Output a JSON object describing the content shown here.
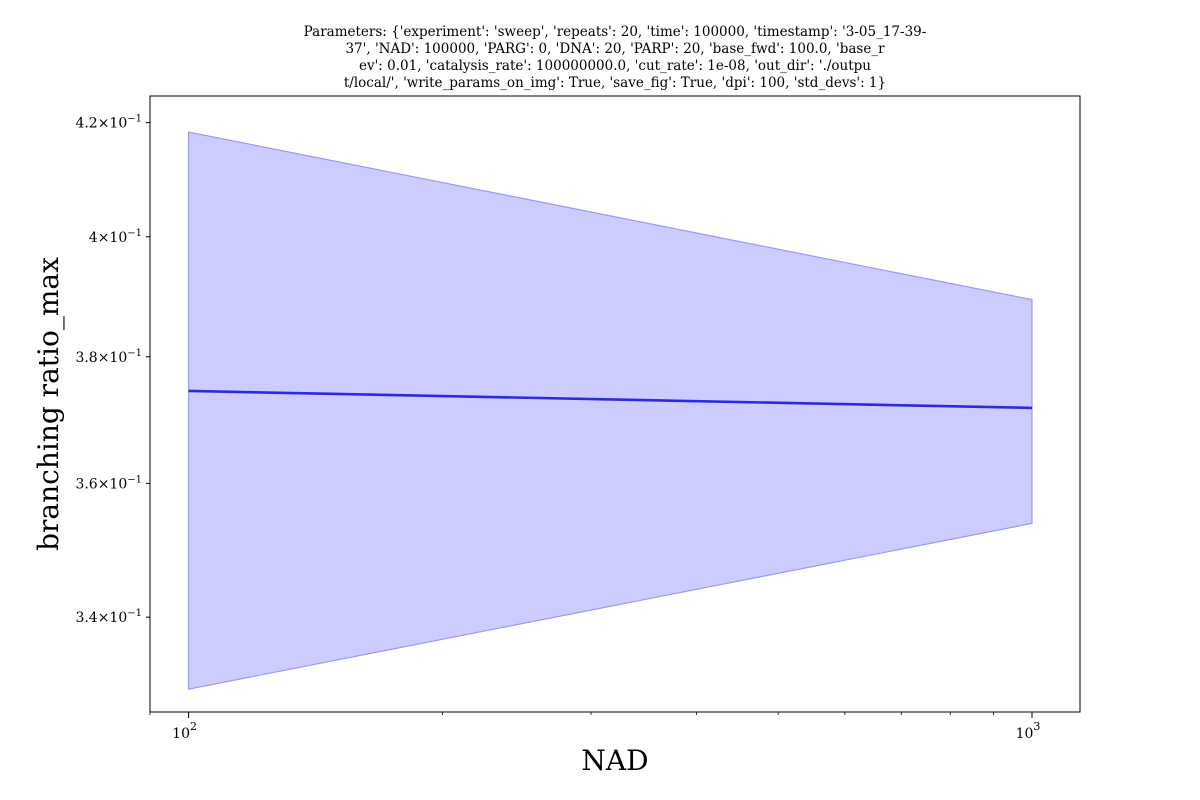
{
  "chart_data": {
    "type": "line",
    "title_lines": [
      "Parameters: {'experiment': 'sweep', 'repeats': 20, 'time': 100000, 'timestamp': '3-05_17-39-",
      "37', 'NAD': 100000, 'PARG': 0, 'DNA': 20, 'PARP': 20, 'base_fwd': 100.0, 'base_r",
      "ev': 0.01, 'catalysis_rate': 100000000.0, 'cut_rate': 1e-08, 'out_dir': './outpu",
      "t/local/', 'write_params_on_img': True, 'save_fig': True, 'dpi': 100, 'std_devs': 1}"
    ],
    "xlabel": "NAD",
    "ylabel": "branching ratio_max",
    "xscale": "log",
    "yscale": "log",
    "xlim": [
      90,
      1140
    ],
    "ylim": [
      0.3265,
      0.4248
    ],
    "x_ticks": [
      {
        "value": 100,
        "base": "10",
        "exp": "2"
      },
      {
        "value": 1000,
        "base": "10",
        "exp": "3"
      }
    ],
    "y_ticks": [
      {
        "value": 0.34,
        "mantissa": "3.4",
        "base": "10",
        "exp": "−1"
      },
      {
        "value": 0.36,
        "mantissa": "3.6",
        "base": "10",
        "exp": "−1"
      },
      {
        "value": 0.38,
        "mantissa": "3.8",
        "base": "10",
        "exp": "−1"
      },
      {
        "value": 0.4,
        "mantissa": "4",
        "base": "10",
        "exp": "−1"
      },
      {
        "value": 0.42,
        "mantissa": "4.2",
        "base": "10",
        "exp": "−1"
      }
    ],
    "series": [
      {
        "x": [
          100,
          1000
        ],
        "y": [
          0.3745,
          0.3718
        ],
        "upper": [
          0.4183,
          0.3894
        ],
        "lower": [
          0.3297,
          0.3539
        ]
      }
    ],
    "line_color": "#2a2ae6",
    "band_color": "#ccccff",
    "band_edge_color": "#9a9af0",
    "grid": false,
    "legend": "none"
  }
}
